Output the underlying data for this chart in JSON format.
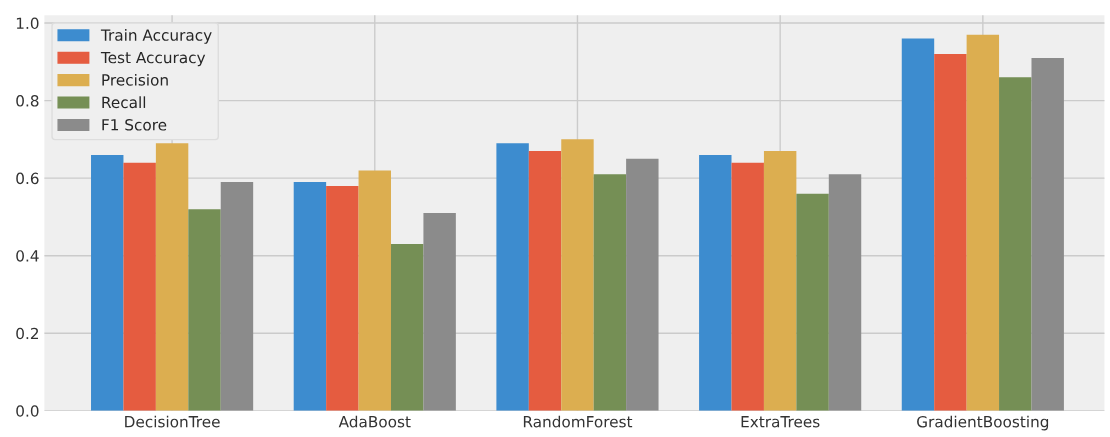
{
  "chart_data": {
    "type": "bar",
    "categories": [
      "DecisionTree",
      "AdaBoost",
      "RandomForest",
      "ExtraTrees",
      "GradientBoosting"
    ],
    "series": [
      {
        "name": "Train Accuracy",
        "color": "#3d8ccf",
        "values": [
          0.66,
          0.59,
          0.69,
          0.66,
          0.96
        ]
      },
      {
        "name": "Test Accuracy",
        "color": "#e55c40",
        "values": [
          0.64,
          0.58,
          0.67,
          0.64,
          0.92
        ]
      },
      {
        "name": "Precision",
        "color": "#dcae50",
        "values": [
          0.69,
          0.62,
          0.7,
          0.67,
          0.97
        ]
      },
      {
        "name": "Recall",
        "color": "#758f55",
        "values": [
          0.52,
          0.43,
          0.61,
          0.56,
          0.86
        ]
      },
      {
        "name": "F1 Score",
        "color": "#8b8b8b",
        "values": [
          0.59,
          0.51,
          0.65,
          0.61,
          0.91
        ]
      }
    ],
    "ylim": [
      0,
      1.02
    ],
    "yticks": [
      {
        "value": 0,
        "label": "0.0"
      },
      {
        "value": 0.2,
        "label": "0.2"
      },
      {
        "value": 0.4,
        "label": "0.4"
      },
      {
        "value": 0.6,
        "label": "0.6"
      },
      {
        "value": 0.8,
        "label": "0.8"
      },
      {
        "value": 1.0,
        "label": "1.0"
      }
    ],
    "grid": true,
    "legend": "top left"
  }
}
